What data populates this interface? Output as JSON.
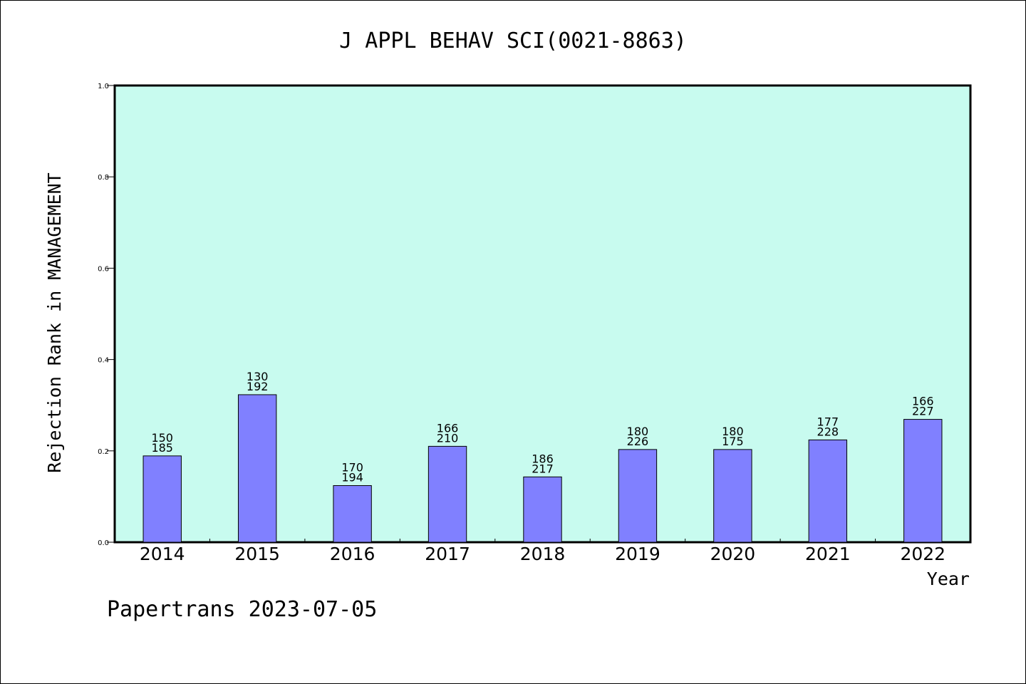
{
  "chart_data": {
    "type": "bar",
    "title": "J APPL BEHAV SCI(0021-8863)",
    "xlabel": "Year",
    "ylabel": "Rejection Rank in MANAGEMENT",
    "categories": [
      "2014",
      "2015",
      "2016",
      "2017",
      "2018",
      "2019",
      "2020",
      "2021",
      "2022"
    ],
    "values": [
      0.189,
      0.323,
      0.124,
      0.21,
      0.143,
      0.203,
      0.203,
      0.224,
      0.269
    ],
    "label_top": [
      "150",
      "130",
      "170",
      "166",
      "186",
      "180",
      "180",
      "177",
      "166"
    ],
    "label_bottom": [
      "185",
      "192",
      "194",
      "210",
      "217",
      "226",
      "175",
      "228",
      "227"
    ],
    "ylim": [
      0.0,
      1.0
    ],
    "yticks": [
      "0.0",
      "0.2",
      "0.4",
      "0.6",
      "0.8",
      "1.0"
    ],
    "grid": false,
    "legend": "none",
    "colors": {
      "plot_background": "#c8fbef",
      "bar_fill": "#8080ff",
      "bar_stroke": "#000000",
      "axis": "#000000"
    }
  },
  "footer": {
    "text": "Papertrans 2023-07-05"
  }
}
